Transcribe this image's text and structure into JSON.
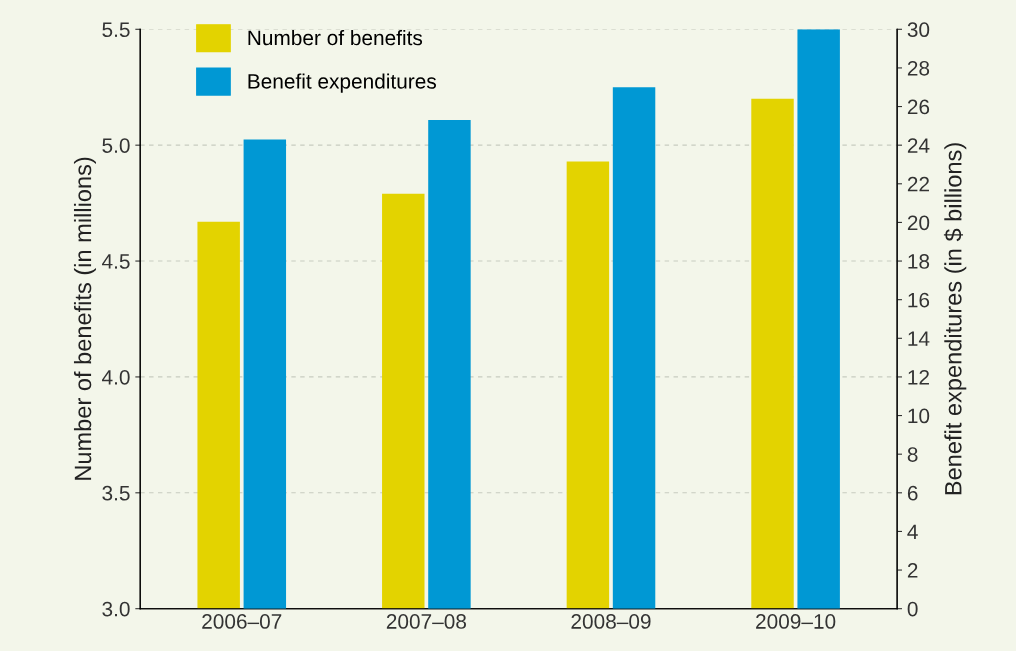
{
  "chart_data": {
    "type": "bar",
    "ylabel": "Number of benefits (in millions)",
    "y2label": "Benefit expenditures (in $ billions)",
    "categories": [
      "2006–07",
      "2007–08",
      "2008–09",
      "2009–10"
    ],
    "series": [
      {
        "name": "Number of benefits",
        "color": "#e3d300",
        "values": [
          4.67,
          4.79,
          4.93,
          5.2
        ]
      },
      {
        "name": "Benefit expenditures",
        "color": "#0098d4",
        "values": [
          24.3,
          25.3,
          27.0,
          30.0
        ],
        "axis": "y2"
      }
    ],
    "ylim": [
      3,
      5.5
    ],
    "yticks": [
      {
        "value": 3,
        "label": "3.0"
      },
      3.5,
      4.5,
      {
        "value": 4,
        "label": "4.0"
      },
      {
        "value": 5,
        "label": "5.0"
      },
      5.5
    ],
    "y2lim": [
      0,
      30
    ],
    "y2ticks": [
      0,
      2,
      4,
      6,
      8,
      10,
      12,
      14,
      16,
      18,
      20,
      22,
      24,
      26,
      28,
      30
    ],
    "grid": "y",
    "legend": "top left"
  }
}
